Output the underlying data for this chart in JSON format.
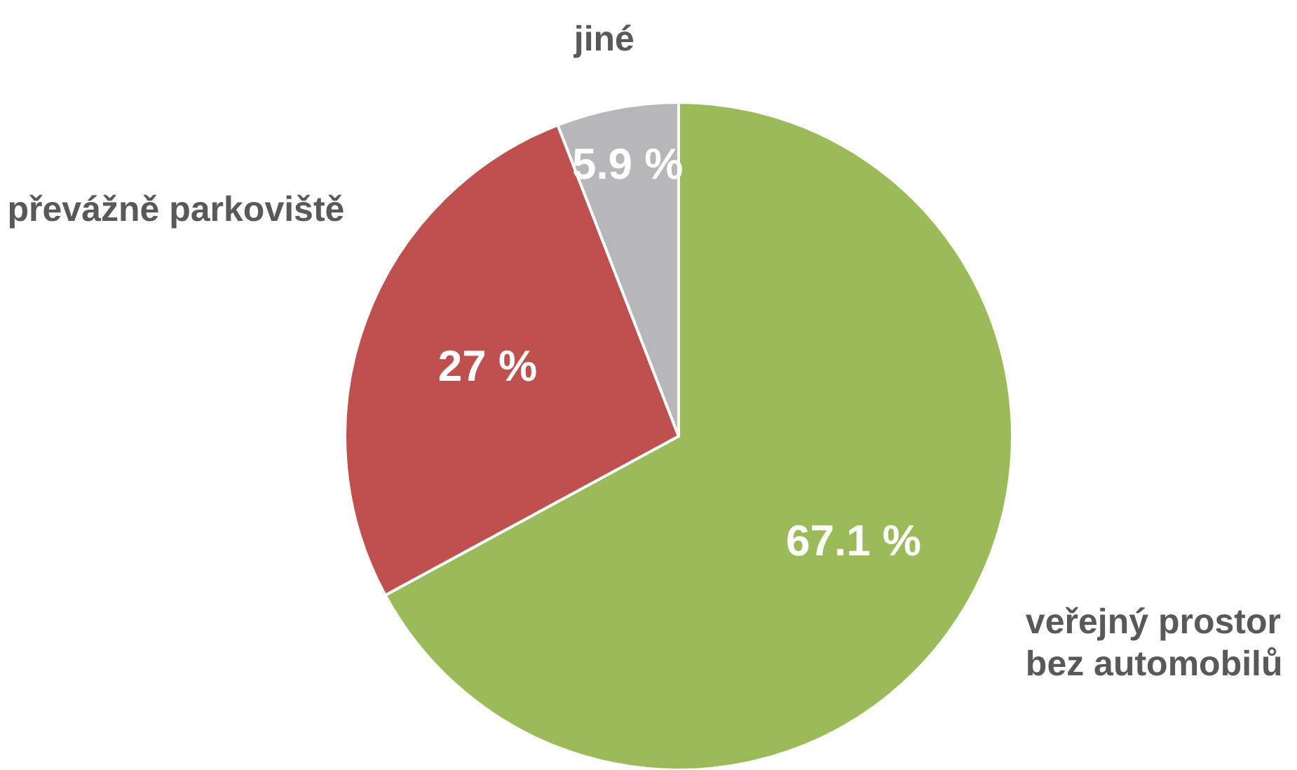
{
  "chart_data": {
    "type": "pie",
    "categories": [
      "veřejný prostor bez automobilů",
      "převážně parkoviště",
      "jiné"
    ],
    "values": [
      67.1,
      27,
      5.9
    ],
    "colors": [
      "#9bbb59",
      "#c0504d",
      "#b7b7b9"
    ],
    "value_labels": [
      "67.1 %",
      "27 %",
      "5.9 %"
    ]
  }
}
